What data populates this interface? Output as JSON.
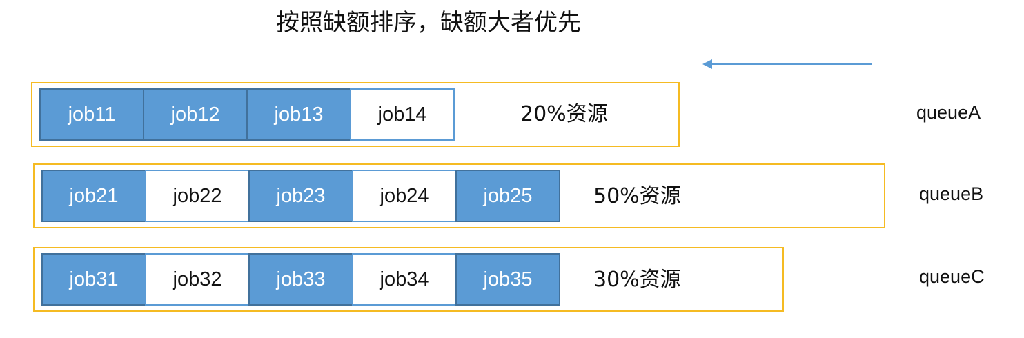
{
  "title": "按照缺额排序，缺额大者优先",
  "colors": {
    "filled_job": "#5b9bd5",
    "job_border": "#41719c",
    "queue_border": "#f5bb23",
    "arrow": "#5b9bd5"
  },
  "queues": [
    {
      "label": "queueA",
      "resource": "20%资源",
      "jobs": [
        {
          "name": "job11",
          "filled": true
        },
        {
          "name": "job12",
          "filled": true
        },
        {
          "name": "job13",
          "filled": true
        },
        {
          "name": "job14",
          "filled": false
        }
      ]
    },
    {
      "label": "queueB",
      "resource": "50%资源",
      "jobs": [
        {
          "name": "job21",
          "filled": true
        },
        {
          "name": "job22",
          "filled": false
        },
        {
          "name": "job23",
          "filled": true
        },
        {
          "name": "job24",
          "filled": false
        },
        {
          "name": "job25",
          "filled": true
        }
      ]
    },
    {
      "label": "queueC",
      "resource": "30%资源",
      "jobs": [
        {
          "name": "job31",
          "filled": true
        },
        {
          "name": "job32",
          "filled": false
        },
        {
          "name": "job33",
          "filled": true
        },
        {
          "name": "job34",
          "filled": false
        },
        {
          "name": "job35",
          "filled": true
        }
      ]
    }
  ]
}
